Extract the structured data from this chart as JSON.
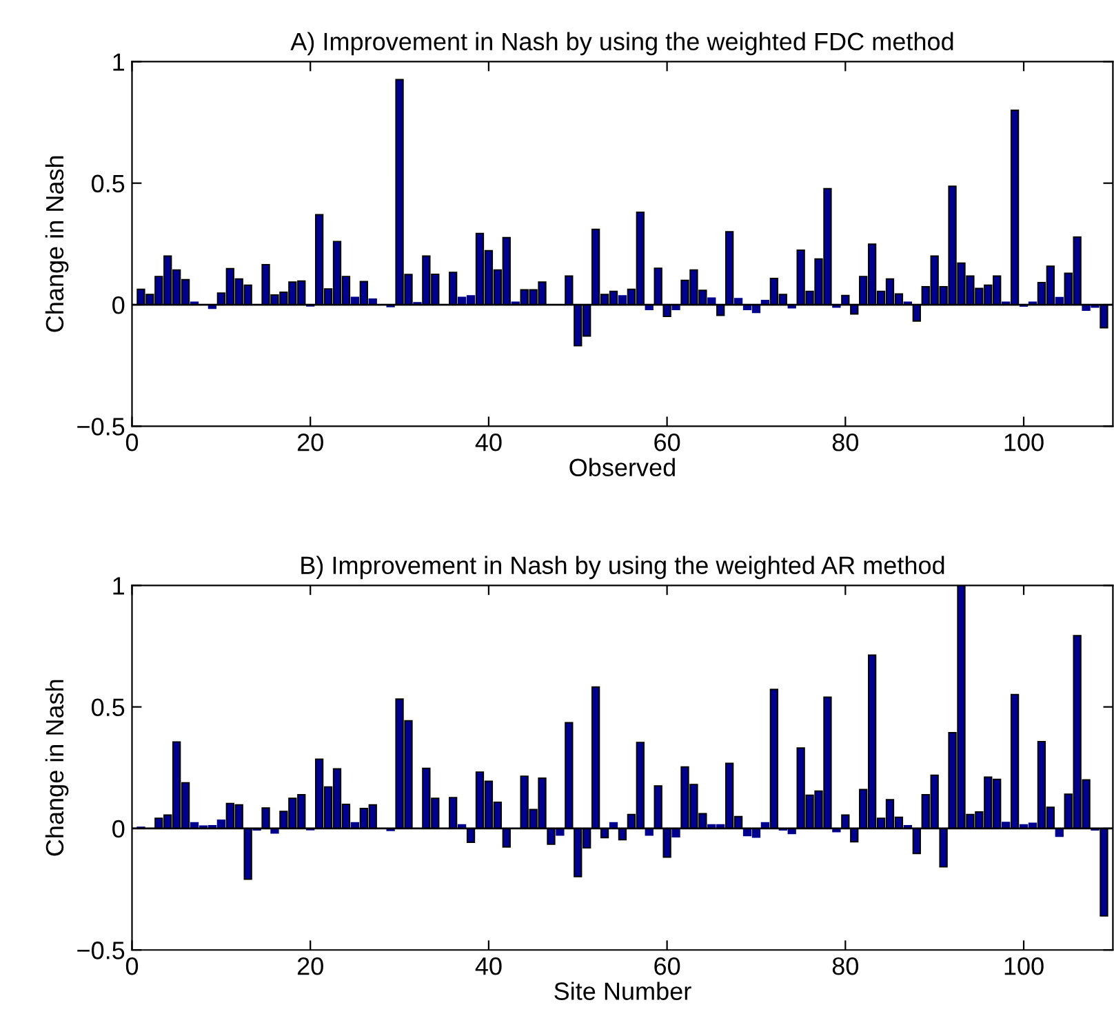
{
  "chart_data": [
    {
      "type": "bar",
      "title": "A) Improvement in Nash by using the weighted FDC method",
      "xlabel": "Observed",
      "ylabel": "Change in Nash",
      "color": "#00008f",
      "x": [
        1,
        2,
        3,
        4,
        5,
        6,
        7,
        8,
        9,
        10,
        11,
        12,
        13,
        14,
        15,
        16,
        17,
        18,
        19,
        20,
        21,
        22,
        23,
        24,
        25,
        26,
        27,
        28,
        29,
        30,
        31,
        32,
        33,
        34,
        35,
        36,
        37,
        38,
        39,
        40,
        41,
        42,
        43,
        44,
        45,
        46,
        47,
        48,
        49,
        50,
        51,
        52,
        53,
        54,
        55,
        56,
        57,
        58,
        59,
        60,
        61,
        62,
        63,
        64,
        65,
        66,
        67,
        68,
        69,
        70,
        71,
        72,
        73,
        74,
        75,
        76,
        77,
        78,
        79,
        80,
        81,
        82,
        83,
        84,
        85,
        86,
        87,
        88,
        89,
        90,
        91,
        92,
        93,
        94,
        95,
        96,
        97,
        98,
        99,
        100,
        101,
        102,
        103,
        104,
        105,
        106,
        107,
        108,
        109
      ],
      "values": [
        0.063,
        0.042,
        0.116,
        0.2,
        0.143,
        0.103,
        0.01,
        0.0,
        -0.015,
        0.048,
        0.148,
        0.106,
        0.08,
        0.0,
        0.165,
        0.04,
        0.051,
        0.093,
        0.097,
        -0.005,
        0.37,
        0.065,
        0.26,
        0.116,
        0.03,
        0.095,
        0.023,
        null,
        -0.008,
        0.926,
        0.124,
        0.008,
        0.2,
        0.125,
        null,
        0.133,
        0.03,
        0.036,
        0.293,
        0.222,
        0.143,
        0.276,
        0.01,
        0.061,
        0.061,
        0.093,
        0.0,
        0.0,
        0.118,
        -0.169,
        -0.129,
        0.31,
        0.042,
        0.055,
        0.036,
        0.063,
        0.38,
        -0.02,
        0.15,
        -0.048,
        -0.02,
        0.1,
        0.143,
        0.059,
        0.027,
        -0.044,
        0.3,
        0.025,
        -0.02,
        -0.032,
        0.017,
        0.108,
        0.042,
        -0.013,
        0.224,
        0.055,
        0.188,
        0.477,
        -0.01,
        0.038,
        -0.038,
        0.116,
        0.249,
        0.055,
        0.106,
        0.044,
        0.01,
        -0.067,
        0.074,
        0.2,
        0.074,
        0.487,
        0.171,
        0.118,
        0.067,
        0.08,
        0.118,
        0.01,
        0.8,
        -0.006,
        0.01,
        0.091,
        0.158,
        0.029,
        0.129,
        0.278,
        -0.023,
        -0.01,
        -0.095
      ],
      "xlim": [
        0,
        110
      ],
      "ylim": [
        -0.5,
        1
      ],
      "xticks": [
        0,
        20,
        40,
        60,
        80,
        100
      ],
      "yticks": [
        -0.5,
        0,
        0.5,
        1
      ],
      "ref_lines": [
        {
          "axis": "y",
          "value": 0,
          "color": "#000000"
        }
      ]
    },
    {
      "type": "bar",
      "title": "B) Improvement in Nash by using the weighted AR method",
      "xlabel": "Site Number",
      "ylabel": "Change in Nash",
      "color": "#00008f",
      "x": [
        1,
        2,
        3,
        4,
        5,
        6,
        7,
        8,
        9,
        10,
        11,
        12,
        13,
        14,
        15,
        16,
        17,
        18,
        19,
        20,
        21,
        22,
        23,
        24,
        25,
        26,
        27,
        28,
        29,
        30,
        31,
        32,
        33,
        34,
        35,
        36,
        37,
        38,
        39,
        40,
        41,
        42,
        43,
        44,
        45,
        46,
        47,
        48,
        49,
        50,
        51,
        52,
        53,
        54,
        55,
        56,
        57,
        58,
        59,
        60,
        61,
        62,
        63,
        64,
        65,
        66,
        67,
        68,
        69,
        70,
        71,
        72,
        73,
        74,
        75,
        76,
        77,
        78,
        79,
        80,
        81,
        82,
        83,
        84,
        85,
        86,
        87,
        88,
        89,
        90,
        91,
        92,
        93,
        94,
        95,
        96,
        97,
        98,
        99,
        100,
        101,
        102,
        103,
        104,
        105,
        106,
        107,
        108,
        109
      ],
      "values": [
        0.005,
        0.0,
        0.042,
        0.055,
        0.356,
        0.188,
        0.023,
        0.01,
        0.011,
        0.034,
        0.103,
        0.097,
        -0.209,
        -0.006,
        0.084,
        -0.019,
        0.07,
        0.124,
        0.139,
        -0.005,
        0.285,
        0.171,
        0.245,
        0.099,
        0.023,
        0.082,
        0.097,
        null,
        -0.008,
        0.532,
        0.443,
        null,
        0.247,
        0.124,
        0.0,
        0.127,
        0.015,
        -0.057,
        0.232,
        0.194,
        0.108,
        -0.076,
        0.0,
        0.215,
        0.078,
        0.207,
        -0.065,
        -0.027,
        0.435,
        -0.198,
        -0.08,
        0.582,
        -0.038,
        0.023,
        -0.046,
        0.057,
        0.354,
        -0.027,
        0.175,
        -0.118,
        -0.034,
        0.253,
        0.181,
        0.061,
        0.015,
        0.015,
        0.268,
        0.049,
        -0.029,
        -0.036,
        0.023,
        0.572,
        -0.006,
        -0.021,
        0.331,
        0.137,
        0.154,
        0.54,
        -0.013,
        0.055,
        -0.055,
        0.16,
        0.713,
        0.042,
        0.118,
        0.046,
        0.011,
        -0.103,
        0.139,
        0.219,
        -0.158,
        0.394,
        1.0,
        0.057,
        0.068,
        0.211,
        0.202,
        0.025,
        0.551,
        0.015,
        0.021,
        0.357,
        0.087,
        -0.032,
        0.141,
        0.793,
        0.2,
        -0.006,
        -0.36
      ],
      "xlim": [
        0,
        110
      ],
      "ylim": [
        -0.5,
        1
      ],
      "xticks": [
        0,
        20,
        40,
        60,
        80,
        100
      ],
      "yticks": [
        -0.5,
        0,
        0.5,
        1
      ],
      "ref_lines": [
        {
          "axis": "y",
          "value": 0,
          "color": "#000000"
        }
      ]
    }
  ]
}
